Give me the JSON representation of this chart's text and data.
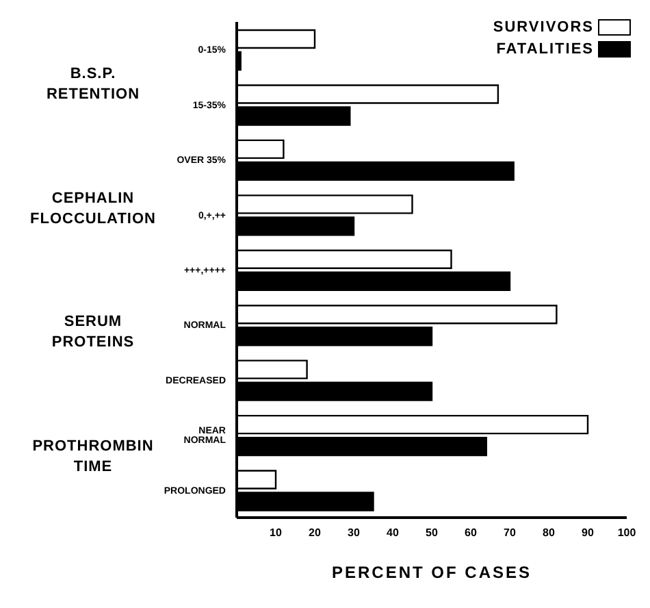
{
  "chart_data": {
    "type": "bar",
    "orientation": "horizontal",
    "xlabel": "PERCENT OF CASES",
    "categories": [
      "0-15%",
      "15-35%",
      "OVER 35%",
      "0,+,++",
      "+++,++++",
      "NORMAL",
      "DECREASED",
      "NEAR NORMAL",
      "PROLONGED"
    ],
    "series": [
      {
        "name": "SURVIVORS",
        "color": "#ffffff",
        "values": [
          20,
          67,
          12,
          45,
          55,
          82,
          18,
          90,
          10
        ]
      },
      {
        "name": "FATALITIES",
        "color": "#000000",
        "values": [
          1,
          29,
          71,
          30,
          70,
          50,
          50,
          64,
          35
        ]
      }
    ],
    "xlim": [
      0,
      100
    ],
    "xticks": [
      10,
      20,
      30,
      40,
      50,
      60,
      70,
      80,
      90,
      100
    ],
    "legend": "top right",
    "grid": false,
    "annotations": [
      "B.S.P.\nRETENTION",
      "CEPHALIN\nFLOCCULATION",
      "SERUM\nPROTEINS",
      "PROTHROMBIN\nTIME"
    ]
  }
}
